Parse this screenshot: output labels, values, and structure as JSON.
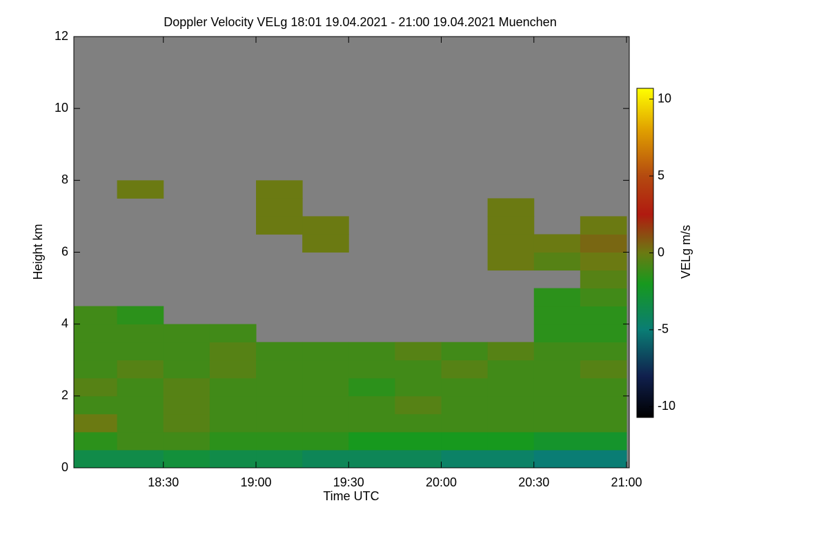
{
  "chart_data": {
    "type": "heatmap",
    "title": "Doppler Velocity VELg   18:01 19.04.2021 - 21:00 19.04.2021 Muenchen",
    "x_label": "Time UTC",
    "y_label": "Height km",
    "colorbar_label": "VELg m/s",
    "background": "#808080",
    "xlim": [
      18.0167,
      21.0
    ],
    "xticks": [
      {
        "value": 18.5,
        "label": "18:30"
      },
      {
        "value": 19.0,
        "label": "19:00"
      },
      {
        "value": 19.5,
        "label": "19:30"
      },
      {
        "value": 20.0,
        "label": "20:00"
      },
      {
        "value": 20.5,
        "label": "20:30"
      },
      {
        "value": 21.0,
        "label": "21:00"
      }
    ],
    "ylim": [
      0,
      12
    ],
    "yticks": [
      0,
      2,
      4,
      6,
      8,
      10,
      12
    ],
    "x_edges": [
      18.0,
      18.25,
      18.5,
      18.75,
      19.0,
      19.25,
      19.5,
      19.75,
      20.0,
      20.25,
      20.5,
      20.75,
      21.0
    ],
    "y_edges": [
      0,
      0.5,
      1,
      1.5,
      2,
      2.5,
      3,
      3.5,
      4,
      4.5,
      5,
      5.5,
      6,
      6.5,
      7,
      7.5,
      8
    ],
    "z": [
      [
        -3.5,
        -3.5,
        -3,
        -3.5,
        -3.5,
        -4,
        -4,
        -4,
        -4.5,
        -4.5,
        -5,
        -5
      ],
      [
        -1.5,
        -1,
        -1,
        -1.5,
        -1.5,
        -1.5,
        -2,
        -2,
        -2,
        -2,
        -2.5,
        -2.5
      ],
      [
        0,
        -1,
        -0.5,
        -1,
        -1,
        -1,
        -1,
        -1,
        -1,
        -1,
        -1,
        -1
      ],
      [
        -1,
        -1,
        -0.5,
        -1,
        -1,
        -1,
        -1,
        -0.5,
        -1,
        -1,
        -1,
        -1
      ],
      [
        -0.5,
        -1,
        -0.5,
        -1,
        -1,
        -1,
        -1.5,
        -1,
        -1,
        -1,
        -1,
        -1
      ],
      [
        -1,
        -0.5,
        -1,
        -0.5,
        -1,
        -1,
        -1,
        -1,
        -0.5,
        -1,
        -1,
        -0.5
      ],
      [
        -1,
        -1,
        -1,
        -0.5,
        -1,
        -1,
        -1,
        -0.5,
        -1,
        -0.5,
        -1,
        -1
      ],
      [
        -1,
        -1,
        -1,
        -1,
        null,
        null,
        null,
        null,
        null,
        null,
        -1.5,
        -1.5
      ],
      [
        -1,
        -1.5,
        null,
        null,
        null,
        null,
        null,
        null,
        null,
        null,
        -1.5,
        -1.5
      ],
      [
        null,
        null,
        null,
        null,
        null,
        null,
        null,
        null,
        null,
        null,
        -1.5,
        -1
      ],
      [
        null,
        null,
        null,
        null,
        null,
        null,
        null,
        null,
        null,
        null,
        null,
        -0.5
      ],
      [
        null,
        null,
        null,
        null,
        null,
        null,
        null,
        null,
        null,
        0,
        -0.5,
        0
      ],
      [
        null,
        null,
        null,
        null,
        null,
        0,
        null,
        null,
        null,
        0,
        0,
        0.5
      ],
      [
        null,
        null,
        null,
        null,
        0,
        0,
        null,
        null,
        null,
        0,
        null,
        0
      ],
      [
        null,
        null,
        null,
        null,
        0,
        null,
        null,
        null,
        null,
        0,
        null,
        null
      ],
      [
        null,
        0,
        null,
        null,
        0,
        null,
        null,
        null,
        null,
        null,
        null,
        null
      ]
    ],
    "zlim": [
      -10.7,
      10.7
    ],
    "zticks": [
      -10,
      -5,
      0,
      5,
      10
    ],
    "colorscale": [
      [
        -10.7,
        "#000000"
      ],
      [
        -8,
        "#10204e"
      ],
      [
        -5,
        "#0a7d74"
      ],
      [
        -2,
        "#17991e"
      ],
      [
        0,
        "#6b7a12"
      ],
      [
        2.5,
        "#b01a10"
      ],
      [
        5,
        "#b44a10"
      ],
      [
        8,
        "#e0a000"
      ],
      [
        10.7,
        "#ffff00"
      ]
    ]
  }
}
